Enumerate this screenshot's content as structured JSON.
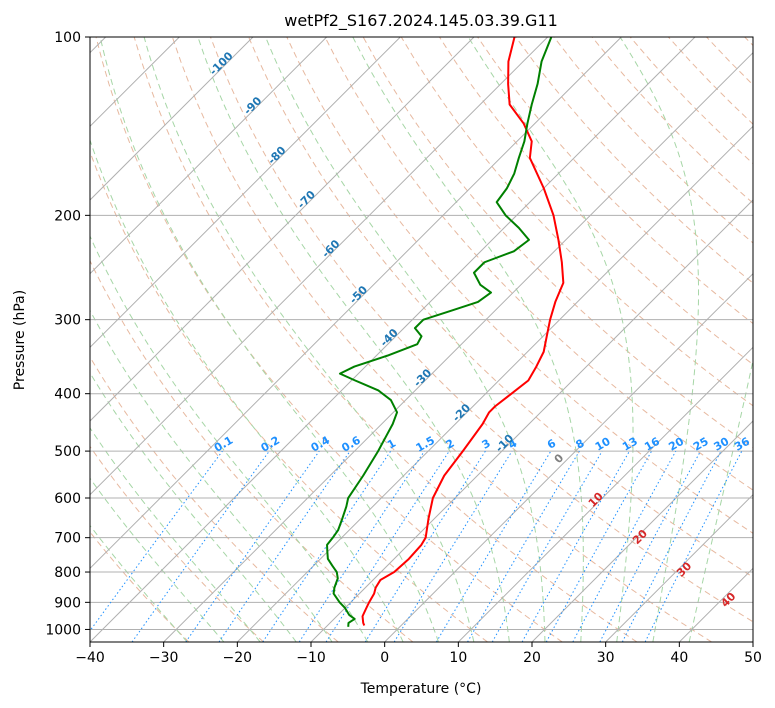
{
  "chart_data": {
    "type": "skew-t",
    "title": "wetPf2_S167.2024.145.03.39.G11",
    "xlabel": "Temperature (°C)",
    "ylabel": "Pressure (hPa)",
    "xlim": [
      -40,
      50
    ],
    "ylim": [
      1050,
      100
    ],
    "y_scale": "log",
    "grid": true,
    "x_ticks": [
      -40,
      -30,
      -20,
      -10,
      0,
      10,
      20,
      30,
      40,
      50
    ],
    "x_tick_labels": [
      "−40",
      "−30",
      "−20",
      "−10",
      "0",
      "10",
      "20",
      "30",
      "40",
      "50"
    ],
    "y_ticks": [
      100,
      200,
      300,
      400,
      500,
      600,
      700,
      800,
      900,
      1000
    ],
    "y_tick_labels": [
      "100",
      "200",
      "300",
      "400",
      "500",
      "600",
      "700",
      "800",
      "900",
      "1000"
    ],
    "series": [
      {
        "role": "temperature",
        "color": "#ff0000",
        "points": [
          {
            "p": 985,
            "t": -5.0
          },
          {
            "p": 975,
            "t": -5.5
          },
          {
            "p": 950,
            "t": -6.5
          },
          {
            "p": 925,
            "t": -7.0
          },
          {
            "p": 900,
            "t": -7.5
          },
          {
            "p": 870,
            "t": -8.0
          },
          {
            "p": 850,
            "t": -8.6
          },
          {
            "p": 825,
            "t": -9.0
          },
          {
            "p": 800,
            "t": -8.2
          },
          {
            "p": 760,
            "t": -8.0
          },
          {
            "p": 720,
            "t": -8.2
          },
          {
            "p": 700,
            "t": -8.6
          },
          {
            "p": 650,
            "t": -10.8
          },
          {
            "p": 600,
            "t": -13.0
          },
          {
            "p": 550,
            "t": -14.5
          },
          {
            "p": 500,
            "t": -15.3
          },
          {
            "p": 450,
            "t": -16.3
          },
          {
            "p": 430,
            "t": -17.0
          },
          {
            "p": 420,
            "t": -17.0
          },
          {
            "p": 400,
            "t": -16.5
          },
          {
            "p": 380,
            "t": -16.0
          },
          {
            "p": 360,
            "t": -16.8
          },
          {
            "p": 340,
            "t": -17.8
          },
          {
            "p": 320,
            "t": -19.5
          },
          {
            "p": 300,
            "t": -21.3
          },
          {
            "p": 280,
            "t": -23.0
          },
          {
            "p": 260,
            "t": -24.5
          },
          {
            "p": 240,
            "t": -27.5
          },
          {
            "p": 220,
            "t": -31.0
          },
          {
            "p": 200,
            "t": -35.0
          },
          {
            "p": 180,
            "t": -40.0
          },
          {
            "p": 160,
            "t": -46.0
          },
          {
            "p": 150,
            "t": -48.0
          },
          {
            "p": 140,
            "t": -51.5
          },
          {
            "p": 130,
            "t": -56.0
          },
          {
            "p": 120,
            "t": -59.0
          },
          {
            "p": 110,
            "t": -62.0
          },
          {
            "p": 100,
            "t": -64.5
          }
        ]
      },
      {
        "role": "dewpoint",
        "color": "#008000",
        "points": [
          {
            "p": 990,
            "t": -7.0
          },
          {
            "p": 975,
            "t": -7.5
          },
          {
            "p": 960,
            "t": -7.2
          },
          {
            "p": 945,
            "t": -8.5
          },
          {
            "p": 920,
            "t": -10.0
          },
          {
            "p": 900,
            "t": -11.5
          },
          {
            "p": 870,
            "t": -13.5
          },
          {
            "p": 850,
            "t": -14.2
          },
          {
            "p": 820,
            "t": -15.0
          },
          {
            "p": 800,
            "t": -16.0
          },
          {
            "p": 780,
            "t": -17.5
          },
          {
            "p": 760,
            "t": -19.0
          },
          {
            "p": 740,
            "t": -20.0
          },
          {
            "p": 720,
            "t": -21.0
          },
          {
            "p": 700,
            "t": -21.2
          },
          {
            "p": 680,
            "t": -21.5
          },
          {
            "p": 650,
            "t": -22.5
          },
          {
            "p": 620,
            "t": -23.6
          },
          {
            "p": 600,
            "t": -24.5
          },
          {
            "p": 550,
            "t": -25.5
          },
          {
            "p": 500,
            "t": -26.8
          },
          {
            "p": 470,
            "t": -27.8
          },
          {
            "p": 450,
            "t": -28.5
          },
          {
            "p": 430,
            "t": -29.5
          },
          {
            "p": 410,
            "t": -32.0
          },
          {
            "p": 395,
            "t": -35.0
          },
          {
            "p": 380,
            "t": -39.5
          },
          {
            "p": 370,
            "t": -42.5
          },
          {
            "p": 360,
            "t": -41.5
          },
          {
            "p": 345,
            "t": -38.5
          },
          {
            "p": 330,
            "t": -36.0
          },
          {
            "p": 320,
            "t": -36.5
          },
          {
            "p": 310,
            "t": -38.5
          },
          {
            "p": 300,
            "t": -38.5
          },
          {
            "p": 290,
            "t": -36.0
          },
          {
            "p": 280,
            "t": -33.5
          },
          {
            "p": 270,
            "t": -33.0
          },
          {
            "p": 262,
            "t": -35.5
          },
          {
            "p": 250,
            "t": -38.0
          },
          {
            "p": 240,
            "t": -38.0
          },
          {
            "p": 230,
            "t": -35.5
          },
          {
            "p": 220,
            "t": -35.0
          },
          {
            "p": 210,
            "t": -38.0
          },
          {
            "p": 200,
            "t": -41.5
          },
          {
            "p": 190,
            "t": -44.5
          },
          {
            "p": 180,
            "t": -45.0
          },
          {
            "p": 170,
            "t": -46.0
          },
          {
            "p": 160,
            "t": -47.5
          },
          {
            "p": 150,
            "t": -49.0
          },
          {
            "p": 140,
            "t": -51.0
          },
          {
            "p": 130,
            "t": -53.0
          },
          {
            "p": 120,
            "t": -55.0
          },
          {
            "p": 110,
            "t": -57.5
          },
          {
            "p": 100,
            "t": -59.5
          }
        ]
      }
    ],
    "isotherms": {
      "step": 10,
      "color": "#b0b0b0",
      "labels": [
        {
          "t": -100,
          "p": 112
        },
        {
          "t": -90,
          "p": 132
        },
        {
          "t": -80,
          "p": 160
        },
        {
          "t": -70,
          "p": 190
        },
        {
          "t": -60,
          "p": 230
        },
        {
          "t": -50,
          "p": 275
        },
        {
          "t": -40,
          "p": 325
        },
        {
          "t": -30,
          "p": 380
        },
        {
          "t": -20,
          "p": 435
        },
        {
          "t": -10,
          "p": 490
        }
      ],
      "label_color": "#1f77b4"
    },
    "isohumes": {
      "labels": [
        "0.1",
        "0.2",
        "0.4",
        "0.6",
        "1",
        "1.5",
        "2",
        "3",
        "4",
        "6",
        "8",
        "10",
        "13",
        "16",
        "20",
        "25",
        "30",
        "36"
      ],
      "values": [
        0.1,
        0.2,
        0.4,
        0.6,
        1,
        1.5,
        2,
        3,
        4,
        6,
        8,
        10,
        13,
        16,
        20,
        25,
        30,
        36
      ],
      "label_pressure": 500,
      "color": "#1e90ff"
    },
    "wet_bulb_labels": {
      "labels": [
        "0",
        "10",
        "20",
        "30",
        "40"
      ],
      "colors": [
        "#808080",
        "#d62728",
        "#d62728",
        "#d62728",
        "#d62728"
      ],
      "points": [
        {
          "t": 24,
          "p": 520
        },
        {
          "t": 29,
          "p": 610
        },
        {
          "t": 35,
          "p": 705
        },
        {
          "t": 41,
          "p": 800
        },
        {
          "t": 47,
          "p": 900
        }
      ]
    },
    "dry_adiabat_color": "#e7b9a0",
    "moist_adiabat_color": "#a6d6a6"
  }
}
